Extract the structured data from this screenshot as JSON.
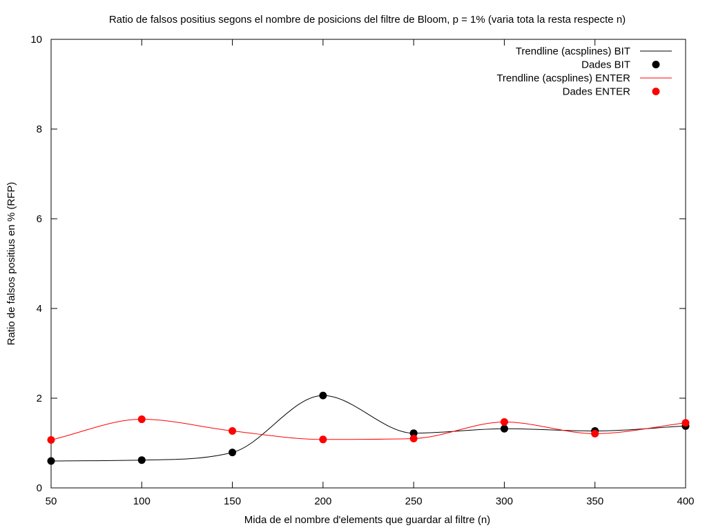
{
  "chart_data": {
    "type": "line",
    "title": "Ratio de falsos positius segons el nombre de posicions del filtre de Bloom, p = 1% (varia tota la resta respecte n)",
    "xlabel": "Mida de el nombre d'elements que guardar al filtre (n)",
    "ylabel": "Ratio de falsos positius en % (RFP)",
    "xlim": [
      50,
      400
    ],
    "ylim": [
      0,
      10
    ],
    "x_ticks": [
      50,
      100,
      150,
      200,
      250,
      300,
      350,
      400
    ],
    "y_ticks": [
      0,
      2,
      4,
      6,
      8,
      10
    ],
    "grid": false,
    "legend_position": "top-right",
    "x": [
      50,
      100,
      150,
      200,
      250,
      300,
      350,
      400
    ],
    "series": [
      {
        "name": "Dades BIT",
        "trend_name": "Trendline (acsplines) BIT",
        "color": "#000000",
        "values": [
          0.6,
          0.62,
          0.79,
          2.06,
          1.22,
          1.32,
          1.27,
          1.38
        ]
      },
      {
        "name": "Dades ENTER",
        "trend_name": "Trendline (acsplines) ENTER",
        "color": "#ff0000",
        "values": [
          1.07,
          1.53,
          1.27,
          1.08,
          1.1,
          1.47,
          1.21,
          1.45
        ]
      }
    ]
  }
}
